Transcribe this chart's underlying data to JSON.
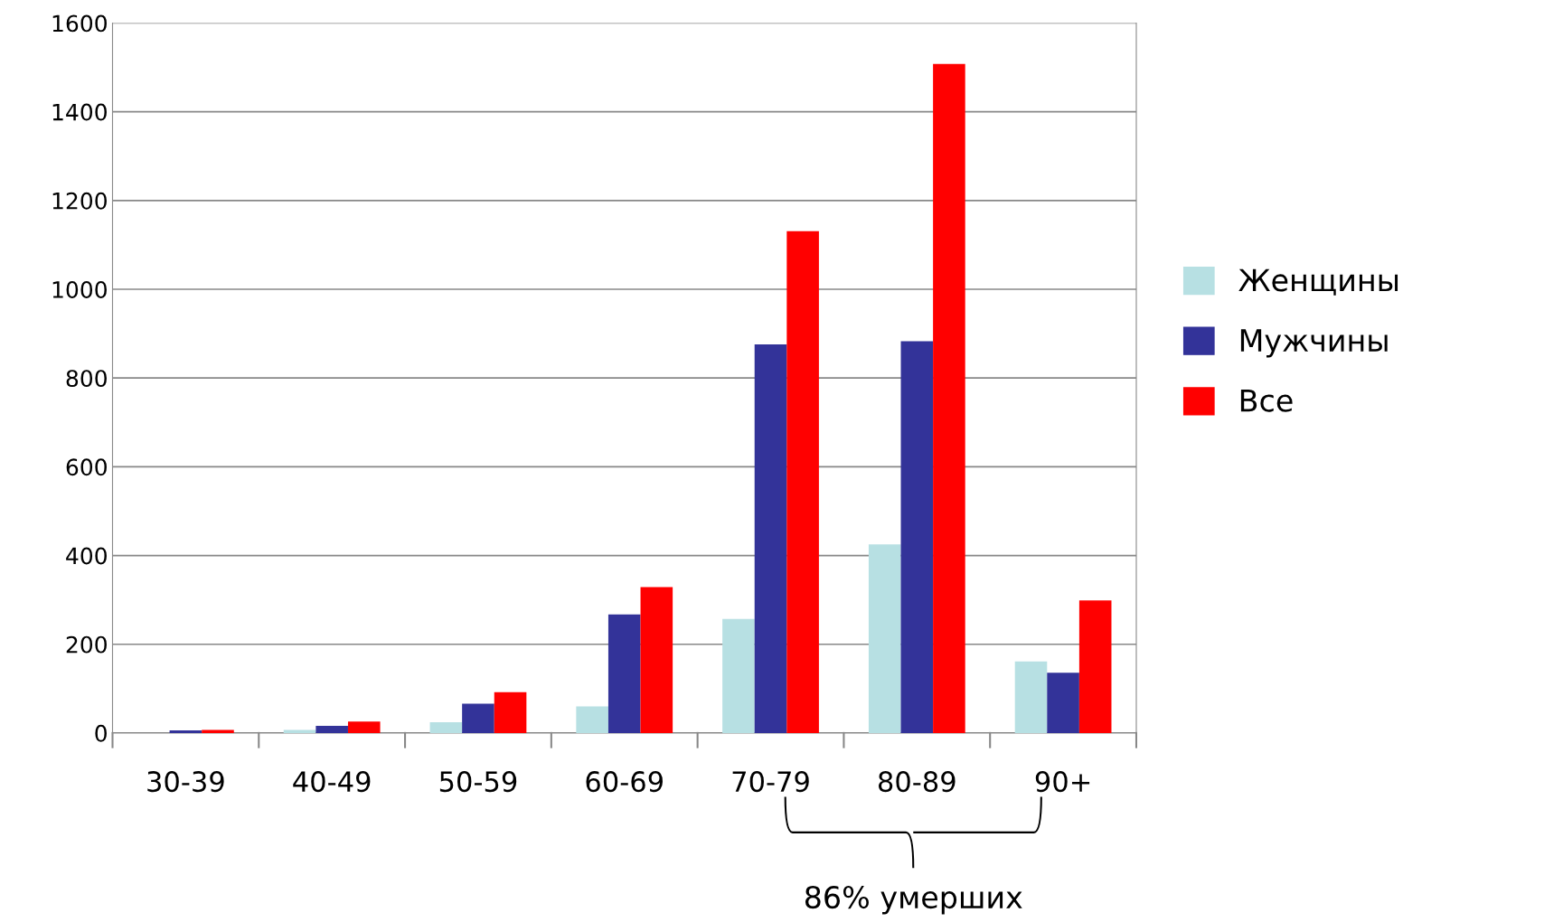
{
  "chart_data": {
    "type": "bar",
    "categories": [
      "30-39",
      "40-49",
      "50-59",
      "60-69",
      "70-79",
      "80-89",
      "90+"
    ],
    "series": [
      {
        "name": "Женщины",
        "color": "#b7e0e3",
        "values": [
          0,
          7,
          24,
          60,
          257,
          425,
          161
        ]
      },
      {
        "name": "Мужчины",
        "color": "#333399",
        "values": [
          6,
          16,
          66,
          267,
          876,
          883,
          136
        ]
      },
      {
        "name": "Все",
        "color": "#ff0000",
        "values": [
          7,
          26,
          92,
          329,
          1131,
          1508,
          299
        ]
      }
    ],
    "ylim": [
      0,
      1600
    ],
    "yticks": [
      0,
      200,
      400,
      600,
      800,
      1000,
      1200,
      1400,
      1600
    ],
    "grid": "y",
    "legend": "right",
    "annotations": [
      "86% умерших"
    ]
  }
}
